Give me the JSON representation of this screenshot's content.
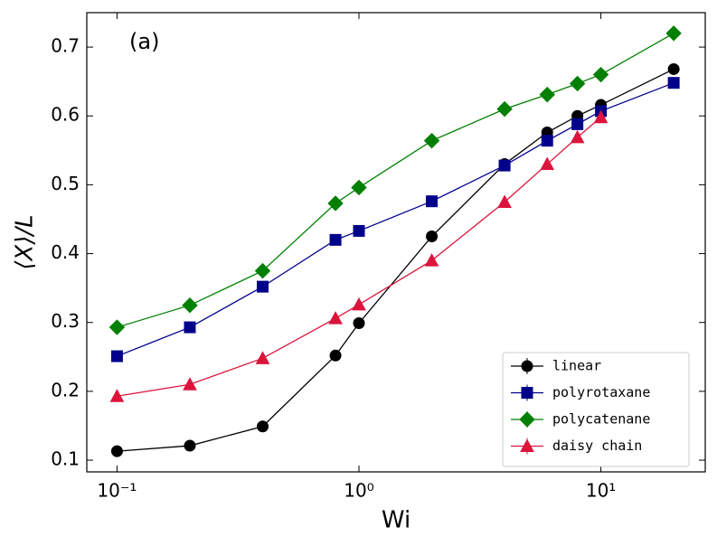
{
  "chart_data": {
    "type": "line",
    "annotation": "(a)",
    "x_label": "Wi",
    "y_label": "⟨X⟩/L",
    "x": [
      0.1,
      0.2,
      0.4,
      0.8,
      1,
      2,
      4,
      6,
      8,
      10,
      20
    ],
    "series": [
      {
        "name": "linear",
        "color": "#000000",
        "marker": "circle",
        "values": [
          0.113,
          0.121,
          0.149,
          0.252,
          0.299,
          0.425,
          0.53,
          0.576,
          0.6,
          0.616,
          0.668
        ]
      },
      {
        "name": "polyrotaxane",
        "color": "#00008b",
        "marker": "square",
        "values": [
          0.251,
          0.293,
          0.352,
          0.42,
          0.433,
          0.476,
          0.528,
          0.564,
          0.588,
          0.607,
          0.648
        ]
      },
      {
        "name": "polycatenane",
        "color": "#008000",
        "marker": "diamond",
        "values": [
          0.293,
          0.325,
          0.375,
          0.473,
          0.496,
          0.564,
          0.61,
          0.631,
          0.647,
          0.66,
          0.72
        ]
      },
      {
        "name": "daisy chain",
        "color": "#dc143c",
        "marker": "triangle",
        "values": [
          0.193,
          0.21,
          0.248,
          0.306,
          0.326,
          0.39,
          0.475,
          0.53,
          0.569,
          0.598,
          null
        ]
      }
    ],
    "x_scale": "log",
    "xlim": [
      0.075,
      27
    ],
    "ylim": [
      0.083,
      0.75
    ],
    "xticks": [
      {
        "value": 0.1,
        "label": "10⁻¹"
      },
      {
        "value": 1,
        "label": "10⁰"
      },
      {
        "value": 10,
        "label": "10¹"
      }
    ],
    "yticks": [
      0.1,
      0.2,
      0.3,
      0.4,
      0.5,
      0.6,
      0.7
    ],
    "legend": "lower right"
  }
}
